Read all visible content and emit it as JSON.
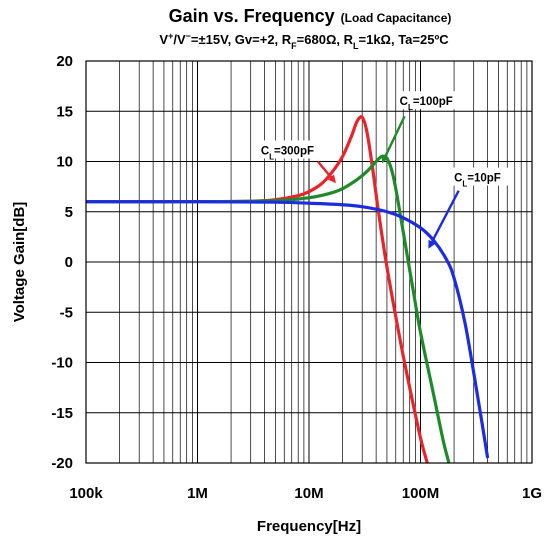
{
  "chart_data": {
    "type": "line",
    "title": "Gain vs. Frequency",
    "title_suffix": "(Load Capacitance)",
    "subtitle": "V+/V−=±15V, Gv=+2, RF=680Ω, RL=1kΩ, Ta=25ºC",
    "xlabel": "Frequency[Hz]",
    "ylabel": "Voltage Gain[dB]",
    "x_scale": "log",
    "xlim": [
      100000,
      1000000000
    ],
    "ylim": [
      -20,
      20
    ],
    "grid": true,
    "x_ticks": [
      {
        "value": 100000,
        "label": "100k"
      },
      {
        "value": 1000000,
        "label": "1M"
      },
      {
        "value": 10000000,
        "label": "10M"
      },
      {
        "value": 100000000,
        "label": "100M"
      },
      {
        "value": 1000000000,
        "label": "1G"
      }
    ],
    "y_ticks": [
      {
        "value": 20,
        "label": "20"
      },
      {
        "value": 15,
        "label": "15"
      },
      {
        "value": 10,
        "label": "10"
      },
      {
        "value": 5,
        "label": "5"
      },
      {
        "value": 0,
        "label": "0"
      },
      {
        "value": -5,
        "label": "-5"
      },
      {
        "value": -10,
        "label": "-10"
      },
      {
        "value": -15,
        "label": "-15"
      },
      {
        "value": -20,
        "label": "-20"
      }
    ],
    "series": [
      {
        "name": "CL=300pF",
        "color": "#e8242a",
        "x": [
          100000,
          1000000,
          3000000,
          5000000,
          8000000,
          10000000,
          13000000,
          16000000,
          20000000,
          24000000,
          27000000,
          30000000,
          33000000,
          37000000,
          42000000,
          50000000,
          65000000,
          80000000,
          100000000,
          115000000
        ],
        "y": [
          6.0,
          6.0,
          6.05,
          6.2,
          6.6,
          7.0,
          7.8,
          8.9,
          10.5,
          12.5,
          14.0,
          14.4,
          13.0,
          9.5,
          5.0,
          -0.5,
          -7.5,
          -12.5,
          -17.5,
          -20.0
        ]
      },
      {
        "name": "CL=100pF",
        "color": "#1f8a2a",
        "x": [
          100000,
          1000000,
          5000000,
          10000000,
          15000000,
          20000000,
          27000000,
          33000000,
          40000000,
          45000000,
          50000000,
          55000000,
          60000000,
          70000000,
          85000000,
          100000000,
          130000000,
          160000000,
          180000000
        ],
        "y": [
          6.0,
          6.0,
          6.1,
          6.4,
          6.8,
          7.3,
          8.2,
          9.0,
          10.0,
          10.5,
          10.3,
          9.2,
          7.3,
          3.0,
          -2.5,
          -7.0,
          -13.0,
          -17.8,
          -20.0
        ]
      },
      {
        "name": "CL=10pF",
        "color": "#1c2ce0",
        "x": [
          100000,
          1000000,
          5000000,
          10000000,
          20000000,
          30000000,
          50000000,
          70000000,
          100000000,
          130000000,
          170000000,
          200000000,
          250000000,
          300000000,
          350000000,
          400000000
        ],
        "y": [
          6.0,
          6.0,
          5.95,
          5.85,
          5.7,
          5.5,
          5.0,
          4.4,
          3.4,
          2.2,
          0.3,
          -1.6,
          -6.0,
          -11.0,
          -15.5,
          -19.5
        ]
      }
    ],
    "annotations": [
      {
        "text": "CL=300pF",
        "label_x": 3700000,
        "label_y": 10.9,
        "arrow_from": [
          12000000,
          10.0
        ],
        "arrow_to": [
          17000000,
          8.0
        ],
        "color": "#e8242a"
      },
      {
        "text": "CL=100pF",
        "label_x": 65000000,
        "label_y": 15.8,
        "arrow_from": [
          72000000,
          14.5
        ],
        "arrow_to": [
          46000000,
          10.0
        ],
        "color": "#1f8a2a"
      },
      {
        "text": "CL=10pF",
        "label_x": 200000000,
        "label_y": 8.2,
        "arrow_from": [
          220000000,
          7.1
        ],
        "arrow_to": [
          120000000,
          1.5
        ],
        "color": "#1c2ce0"
      }
    ]
  }
}
